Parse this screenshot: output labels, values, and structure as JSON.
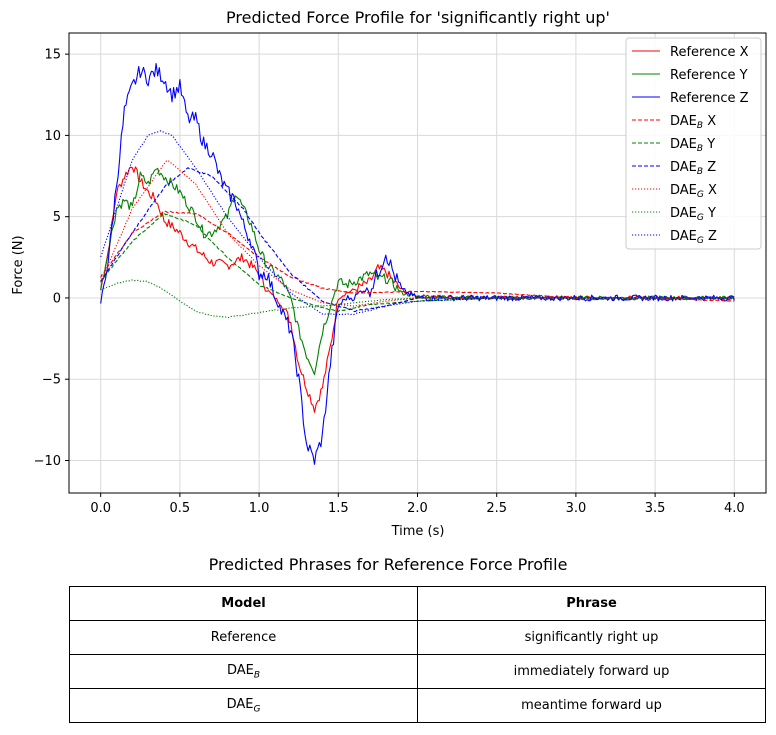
{
  "chart_data": {
    "type": "line",
    "title": "Predicted Force Profile for 'significantly right up'",
    "xlabel": "Time (s)",
    "ylabel": "Force (N)",
    "xlim": [
      -0.2,
      4.2
    ],
    "ylim": [
      -12,
      16.3
    ],
    "xticks": [
      0,
      0.5,
      1,
      1.5,
      2,
      2.5,
      3,
      3.5,
      4
    ],
    "yticks": [
      -10,
      -5,
      0,
      5,
      10,
      15
    ],
    "grid": true,
    "legend_position": "top-right",
    "series": [
      {
        "name": "Reference X",
        "legend_base": "Reference X",
        "legend_sub": "",
        "legend_suffix": "",
        "color": "#ff0000",
        "dash": "solid",
        "noise": 0.3,
        "x": [
          0,
          0.05,
          0.1,
          0.15,
          0.2,
          0.25,
          0.3,
          0.35,
          0.4,
          0.5,
          0.6,
          0.7,
          0.8,
          0.9,
          1.0,
          1.05,
          1.1,
          1.15,
          1.2,
          1.25,
          1.3,
          1.35,
          1.4,
          1.45,
          1.5,
          1.55,
          1.6,
          1.7,
          1.75,
          1.8,
          1.85,
          1.9,
          2.0,
          2.5,
          3.0,
          3.5,
          4.0
        ],
        "y": [
          0.5,
          3.0,
          6.5,
          7.5,
          8.2,
          7.2,
          6.5,
          6.0,
          4.8,
          4.0,
          3.0,
          2.2,
          2.0,
          2.5,
          1.5,
          0.5,
          0.0,
          -0.5,
          -1.5,
          -4.0,
          -5.5,
          -6.8,
          -5.5,
          -3.0,
          0.0,
          0.3,
          0.5,
          1.0,
          1.8,
          1.6,
          1.0,
          0.5,
          0.1,
          0.0,
          0.0,
          0.0,
          0.0
        ]
      },
      {
        "name": "Reference Y",
        "legend_base": "Reference Y",
        "legend_sub": "",
        "legend_suffix": "",
        "color": "#008000",
        "dash": "solid",
        "noise": 0.3,
        "x": [
          0,
          0.05,
          0.1,
          0.15,
          0.2,
          0.25,
          0.3,
          0.35,
          0.4,
          0.5,
          0.6,
          0.65,
          0.7,
          0.75,
          0.8,
          0.85,
          0.9,
          0.95,
          1.0,
          1.05,
          1.1,
          1.15,
          1.2,
          1.25,
          1.3,
          1.35,
          1.4,
          1.45,
          1.5,
          1.55,
          1.6,
          1.7,
          1.75,
          1.8,
          1.85,
          1.9,
          2.0,
          2.5,
          3.0,
          3.5,
          4.0
        ],
        "y": [
          0.5,
          3.0,
          5.5,
          6.0,
          5.5,
          7.5,
          7.0,
          8.0,
          7.5,
          6.5,
          5.0,
          4.0,
          4.0,
          4.5,
          5.0,
          6.5,
          5.5,
          4.5,
          3.0,
          2.0,
          1.5,
          1.0,
          0.0,
          -2.0,
          -3.5,
          -4.5,
          -2.0,
          -0.5,
          1.0,
          0.8,
          1.0,
          1.5,
          1.2,
          1.2,
          0.8,
          0.3,
          0.1,
          0.0,
          0.0,
          0.0,
          0.0
        ]
      },
      {
        "name": "Reference Z",
        "legend_base": "Reference Z",
        "legend_sub": "",
        "legend_suffix": "",
        "color": "#0000ff",
        "dash": "solid",
        "noise": 0.45,
        "x": [
          0,
          0.05,
          0.1,
          0.15,
          0.2,
          0.25,
          0.3,
          0.35,
          0.4,
          0.45,
          0.5,
          0.55,
          0.6,
          0.65,
          0.7,
          0.75,
          0.8,
          0.85,
          0.9,
          0.95,
          1.0,
          1.05,
          1.1,
          1.15,
          1.2,
          1.25,
          1.3,
          1.35,
          1.4,
          1.45,
          1.5,
          1.55,
          1.6,
          1.65,
          1.7,
          1.75,
          1.8,
          1.85,
          1.9,
          2.0,
          2.5,
          3.0,
          3.5,
          4.0
        ],
        "y": [
          -0.3,
          2.5,
          7.0,
          11.5,
          13.0,
          14.0,
          13.5,
          14.0,
          13.5,
          12.5,
          13.0,
          11.0,
          11.0,
          9.5,
          9.0,
          7.5,
          6.5,
          6.0,
          4.5,
          3.5,
          1.5,
          1.5,
          0.0,
          -1.0,
          -2.0,
          -5.0,
          -9.0,
          -10.0,
          -8.5,
          -4.0,
          -0.5,
          0.0,
          0.0,
          0.5,
          0.5,
          1.5,
          2.8,
          1.5,
          0.5,
          0.0,
          0.0,
          0.0,
          0.0,
          0.0
        ]
      },
      {
        "name": "DAE_B X",
        "legend_base": "DAE",
        "legend_sub": "B",
        "legend_suffix": " X",
        "color": "#ff0000",
        "dash": "dashed",
        "noise": 0.05,
        "x": [
          0,
          0.2,
          0.4,
          0.6,
          0.8,
          1.0,
          1.2,
          1.4,
          1.6,
          2.0,
          2.5,
          3.0,
          3.5,
          4.0
        ],
        "y": [
          1.3,
          4.0,
          5.3,
          5.2,
          4.0,
          2.5,
          1.3,
          0.6,
          0.3,
          0.4,
          0.3,
          0.0,
          0.0,
          -0.2
        ]
      },
      {
        "name": "DAE_B Y",
        "legend_base": "DAE",
        "legend_sub": "B",
        "legend_suffix": " Y",
        "color": "#008000",
        "dash": "dashed",
        "noise": 0.05,
        "x": [
          0,
          0.2,
          0.4,
          0.6,
          0.8,
          1.0,
          1.2,
          1.4,
          1.5,
          1.7,
          2.0,
          2.5,
          3.0,
          3.5,
          4.0
        ],
        "y": [
          1.0,
          3.5,
          5.2,
          4.5,
          2.5,
          0.8,
          0.0,
          -0.6,
          -0.8,
          -0.4,
          -0.2,
          0.0,
          0.0,
          0.0,
          0.0
        ]
      },
      {
        "name": "DAE_B Z",
        "legend_base": "DAE",
        "legend_sub": "B",
        "legend_suffix": " Z",
        "color": "#0000ff",
        "dash": "dashed",
        "noise": 0.05,
        "x": [
          0,
          0.2,
          0.4,
          0.55,
          0.7,
          0.9,
          1.0,
          1.2,
          1.4,
          1.6,
          1.8,
          2.0,
          2.5,
          3.0,
          3.5,
          4.0
        ],
        "y": [
          1.0,
          4.0,
          6.8,
          8.0,
          7.5,
          5.5,
          4.0,
          1.5,
          -0.2,
          -0.8,
          -0.5,
          0.0,
          0.0,
          0.0,
          0.0,
          0.0
        ]
      },
      {
        "name": "DAE_G X",
        "legend_base": "DAE",
        "legend_sub": "G",
        "legend_suffix": " X",
        "color": "#ff0000",
        "dash": "dotted",
        "noise": 0.03,
        "x": [
          0,
          0.2,
          0.42,
          0.6,
          0.8,
          1.0,
          1.2,
          1.4,
          1.6,
          1.8,
          2.0,
          2.5,
          3.0,
          3.5,
          4.0
        ],
        "y": [
          1.0,
          5.5,
          8.5,
          7.0,
          4.0,
          2.0,
          0.5,
          -0.3,
          -0.5,
          -0.2,
          0.0,
          0.0,
          0.0,
          0.0,
          0.0
        ]
      },
      {
        "name": "DAE_G Y",
        "legend_base": "DAE",
        "legend_sub": "G",
        "legend_suffix": " Y",
        "color": "#008000",
        "dash": "dotted",
        "noise": 0.03,
        "x": [
          0,
          0.1,
          0.2,
          0.3,
          0.4,
          0.5,
          0.6,
          0.7,
          0.8,
          1.0,
          1.2,
          1.4,
          1.6,
          1.8,
          2.0,
          2.5,
          3.0,
          3.5,
          4.0
        ],
        "y": [
          0.5,
          0.9,
          1.1,
          1.0,
          0.5,
          -0.2,
          -0.8,
          -1.1,
          -1.2,
          -0.9,
          -0.6,
          -0.5,
          -0.3,
          -0.1,
          0.0,
          0.0,
          0.0,
          0.0,
          0.0
        ]
      },
      {
        "name": "DAE_G Z",
        "legend_base": "DAE",
        "legend_sub": "G",
        "legend_suffix": " Z",
        "color": "#0000ff",
        "dash": "dotted",
        "noise": 0.03,
        "x": [
          0,
          0.1,
          0.2,
          0.3,
          0.38,
          0.45,
          0.6,
          0.8,
          1.0,
          1.2,
          1.4,
          1.6,
          1.8,
          2.0,
          2.5,
          3.0,
          3.5,
          4.0
        ],
        "y": [
          2.5,
          5.5,
          8.5,
          10.0,
          10.3,
          10.0,
          8.0,
          5.0,
          2.5,
          0.3,
          -1.0,
          -1.0,
          -0.5,
          -0.2,
          0.0,
          0.0,
          0.0,
          0.0
        ]
      }
    ]
  },
  "table": {
    "title": "Predicted Phrases for Reference Force Profile",
    "headers": [
      "Model",
      "Phrase"
    ],
    "rows": [
      {
        "model_base": "Reference",
        "model_sub": "",
        "phrase": "significantly right up"
      },
      {
        "model_base": "DAE",
        "model_sub": "B",
        "phrase": "immediately forward up"
      },
      {
        "model_base": "DAE",
        "model_sub": "G",
        "phrase": "meantime forward up"
      }
    ]
  }
}
